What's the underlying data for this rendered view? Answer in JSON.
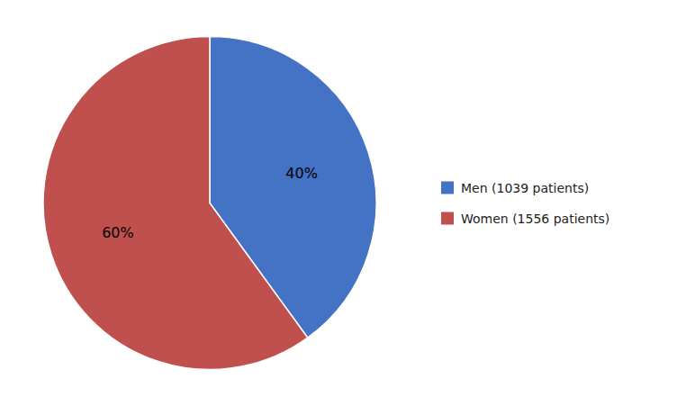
{
  "chart_data": {
    "type": "pie",
    "categories": [
      "Men (1039 patients)",
      "Women (1556 patients)"
    ],
    "values": [
      40,
      60
    ],
    "value_labels": [
      "40%",
      "60%"
    ],
    "colors": [
      "#4472C4",
      "#C0504D"
    ],
    "data_labels": true,
    "legend": "right"
  }
}
